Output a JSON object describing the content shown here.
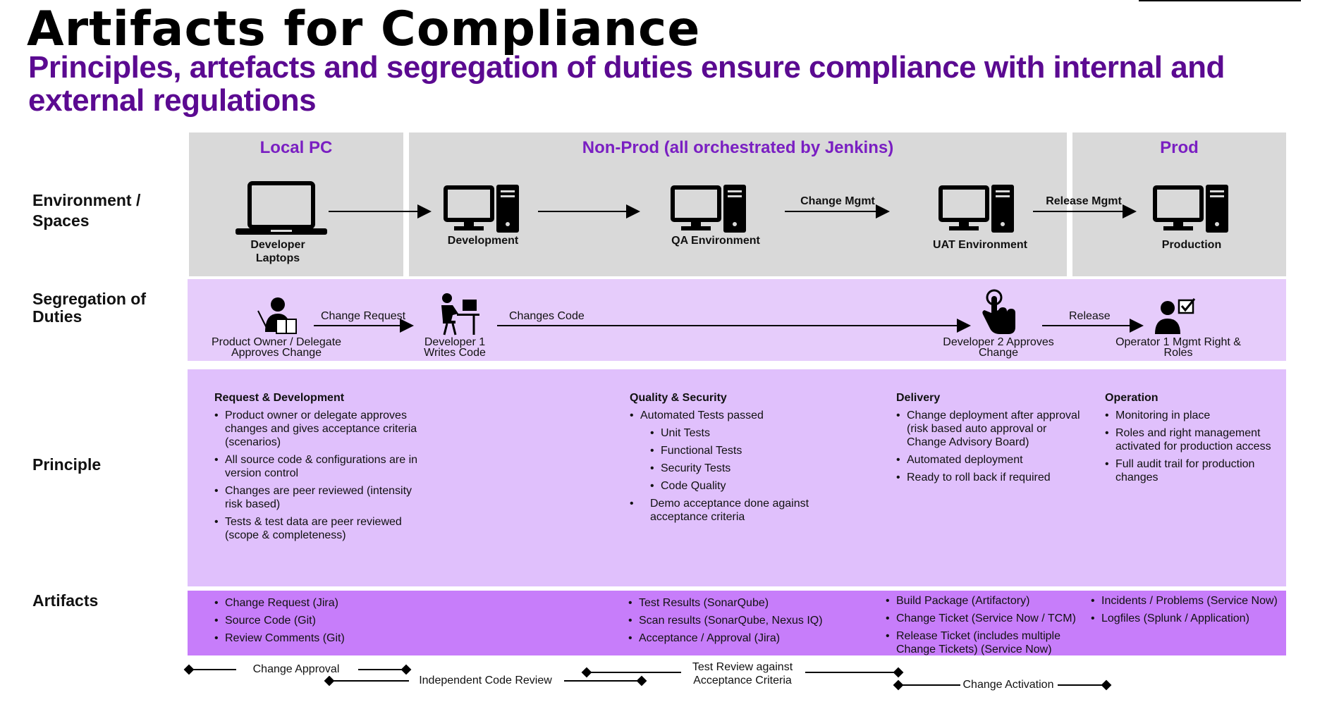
{
  "title": "Artifacts for Compliance",
  "subtitle": "Principles, artefacts and segregation of duties ensure compliance with internal and external regulations",
  "row_labels": {
    "environment": "Environment / Spaces",
    "segregation": "Segregation of Duties",
    "principle": "Principle",
    "artifacts": "Artifacts"
  },
  "environments": {
    "local": "Local PC",
    "nonprod": "Non-Prod (all orchestrated by Jenkins)",
    "prod": "Prod"
  },
  "env_icons": {
    "laptops": "Developer Laptops",
    "development": "Development",
    "qa": "QA Environment",
    "uat": "UAT Environment",
    "production": "Production"
  },
  "env_arrows": {
    "change_mgmt": "Change Mgmt",
    "release_mgmt": "Release Mgmt"
  },
  "sod": {
    "po": "Product Owner / Delegate Approves Change",
    "dev1": "Developer 1 Writes Code",
    "dev2": "Developer 2 Approves Change",
    "op1": "Operator 1 Mgmt Right & Roles",
    "arrow_change_request": "Change Request",
    "arrow_changes_code": "Changes Code",
    "arrow_release": "Release"
  },
  "principles": {
    "request": {
      "heading": "Request & Development",
      "items": [
        "Product owner or delegate approves changes and gives acceptance criteria (scenarios)",
        "All source code & configurations are in version control",
        "Changes are peer reviewed (intensity risk based)",
        "Tests & test data are peer reviewed (scope & completeness)"
      ]
    },
    "quality": {
      "heading": "Quality & Security",
      "item_main": "Automated Tests passed",
      "sub_items": [
        "Unit Tests",
        "Functional Tests",
        "Security Tests",
        "Code Quality"
      ],
      "item_last": "Demo acceptance done against acceptance criteria"
    },
    "delivery": {
      "heading": "Delivery",
      "items": [
        "Change deployment after approval (risk based auto approval or Change Advisory Board)",
        "Automated deployment",
        "Ready to roll back if required"
      ]
    },
    "operation": {
      "heading": "Operation",
      "items": [
        "Monitoring in place",
        "Roles and right management activated for production access",
        "Full audit trail for production changes"
      ]
    }
  },
  "artifacts": {
    "request": [
      "Change Request (Jira)",
      "Source Code (Git)",
      "Review Comments (Git)"
    ],
    "quality": [
      "Test Results (SonarQube)",
      "Scan results (SonarQube, Nexus IQ)",
      "Acceptance / Approval (Jira)"
    ],
    "delivery": [
      "Build Package (Artifactory)",
      "Change Ticket (Service Now / TCM)",
      "Release Ticket (includes multiple Change Tickets) (Service Now)"
    ],
    "operation": [
      "Incidents / Problems (Service Now)",
      "Logfiles (Splunk / Application)"
    ]
  },
  "legend": {
    "change_approval": "Change Approval",
    "independent_review": "Independent Code Review",
    "test_review": "Test Review against Acceptance Criteria",
    "change_activation": "Change Activation"
  },
  "colors": {
    "title_purple": "#5b0a91",
    "env_heading": "#7a1fc2",
    "env_bg": "#d9d9d9",
    "sod_bg": "#e6ccfb",
    "principle_bg": "#e0c0fc",
    "artifact_bg": "#c77dfa"
  },
  "icons": [
    "laptop-icon",
    "computer-icon",
    "user-icon",
    "worker-icon",
    "touch-icon",
    "operator-icon"
  ]
}
